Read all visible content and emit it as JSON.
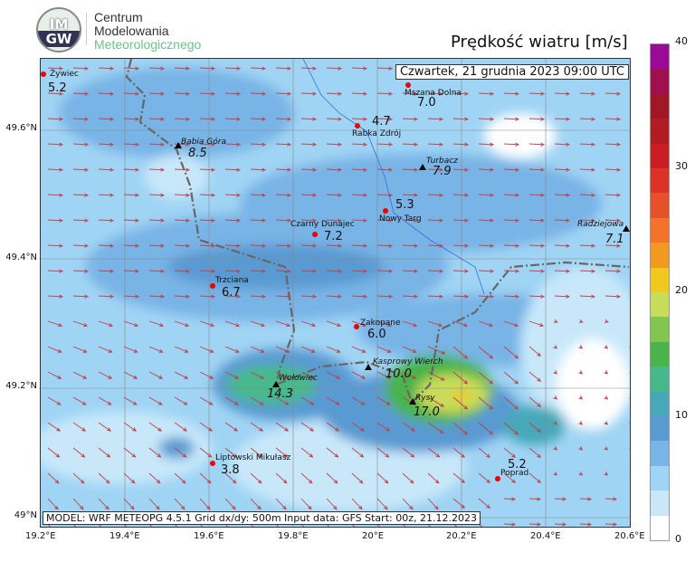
{
  "header": {
    "logo_text_top": "IM",
    "logo_text_bottom": "GW",
    "brand": [
      "Centrum",
      "Modelowania",
      "Meteorologicznego"
    ],
    "title": "Prędkość wiatru [m/s]"
  },
  "map": {
    "date": "Czwartek, 21 grudnia 2023 09:00 UTC",
    "footer": "MODEL: WRF METEOPG 4.5.1 Grid dx/dy: 500m Input data: GFS Start: 00z, 21.12.2023",
    "x_ticks": [
      "19.2°E",
      "19.4°E",
      "19.6°E",
      "19.8°E",
      "20°E",
      "20.2°E",
      "20.4°E",
      "20.6°E"
    ],
    "y_ticks": [
      "49.6°N",
      "49.4°N",
      "49.2°N",
      "49°N"
    ],
    "stations": [
      {
        "name": "Żywiec",
        "value": "5.2",
        "type": "city"
      },
      {
        "name": "Mszana Dolna",
        "value": "7.0",
        "type": "city"
      },
      {
        "name": "Rabka Zdrój",
        "value": "4.7",
        "type": "city"
      },
      {
        "name": "Babia Góra",
        "value": "8.5",
        "type": "peak"
      },
      {
        "name": "Turbacz",
        "value": "7.9",
        "type": "peak"
      },
      {
        "name": "Nowy Targ",
        "value": "5.3",
        "type": "city"
      },
      {
        "name": "Czarny Dunajec",
        "value": "7.2",
        "type": "city"
      },
      {
        "name": "Radziejowa",
        "value": "7.1",
        "type": "peak"
      },
      {
        "name": "Trzciana",
        "value": "6.7",
        "type": "city"
      },
      {
        "name": "Zakopane",
        "value": "6.0",
        "type": "city"
      },
      {
        "name": "Kasprowy Wierch",
        "value": "10.0",
        "type": "peak"
      },
      {
        "name": "Wołowiec",
        "value": "14.3",
        "type": "peak"
      },
      {
        "name": "Rysy",
        "value": "17.0",
        "type": "peak"
      },
      {
        "name": "Liptowski Mikułasz",
        "value": "3.8",
        "type": "city"
      },
      {
        "name": "Poprad",
        "value": "5.2",
        "type": "city"
      }
    ]
  },
  "colorbar": {
    "unit": "m/s",
    "range": [
      0,
      40
    ],
    "step": 2,
    "tick_labels": [
      "0",
      "10",
      "20",
      "30",
      "40"
    ],
    "colors": [
      "#ffffff",
      "#c8e8fa",
      "#a0d4f4",
      "#78b4e6",
      "#5a9ad2",
      "#46a8b8",
      "#46b98c",
      "#4ab44a",
      "#82c650",
      "#c8dc5a",
      "#f0c81e",
      "#f09a22",
      "#f4722a",
      "#e6502a",
      "#dc3228",
      "#c81e24",
      "#b01c22",
      "#a01828",
      "#a0104e",
      "#9b0a96"
    ]
  },
  "colors": {
    "arrow": "#c0404a",
    "border": "#666666",
    "river": "#3a6fd8"
  }
}
